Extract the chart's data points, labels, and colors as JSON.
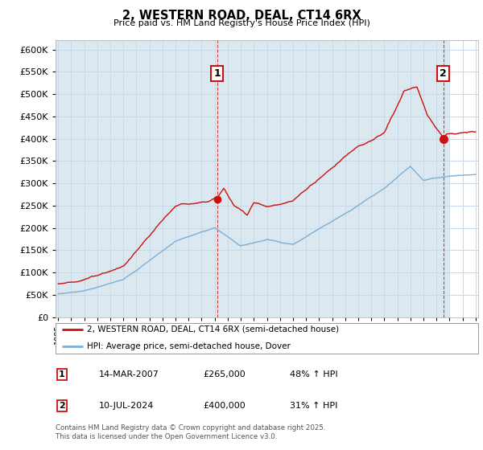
{
  "title": "2, WESTERN ROAD, DEAL, CT14 6RX",
  "subtitle": "Price paid vs. HM Land Registry's House Price Index (HPI)",
  "ylim": [
    0,
    620000
  ],
  "yticks": [
    0,
    50000,
    100000,
    150000,
    200000,
    250000,
    300000,
    350000,
    400000,
    450000,
    500000,
    550000,
    600000
  ],
  "xlim_start": 1994.8,
  "xlim_end": 2027.2,
  "transaction1": {
    "date_num": 2007.2,
    "price": 265000,
    "label": "1",
    "date_str": "14-MAR-2007",
    "pct": "48% ↑ HPI"
  },
  "transaction2": {
    "date_num": 2024.53,
    "price": 400000,
    "label": "2",
    "date_str": "10-JUL-2024",
    "pct": "31% ↑ HPI"
  },
  "hpi_color": "#7bafd4",
  "price_color": "#cc1111",
  "grid_color": "#c8d8e8",
  "bg_chart_color": "#dce8f0",
  "background_color": "#ffffff",
  "legend_label1": "2, WESTERN ROAD, DEAL, CT14 6RX (semi-detached house)",
  "legend_label2": "HPI: Average price, semi-detached house, Dover",
  "footer": "Contains HM Land Registry data © Crown copyright and database right 2025.\nThis data is licensed under the Open Government Licence v3.0.",
  "table_rows": [
    [
      "1",
      "14-MAR-2007",
      "£265,000",
      "48% ↑ HPI"
    ],
    [
      "2",
      "10-JUL-2024",
      "£400,000",
      "31% ↑ HPI"
    ]
  ]
}
